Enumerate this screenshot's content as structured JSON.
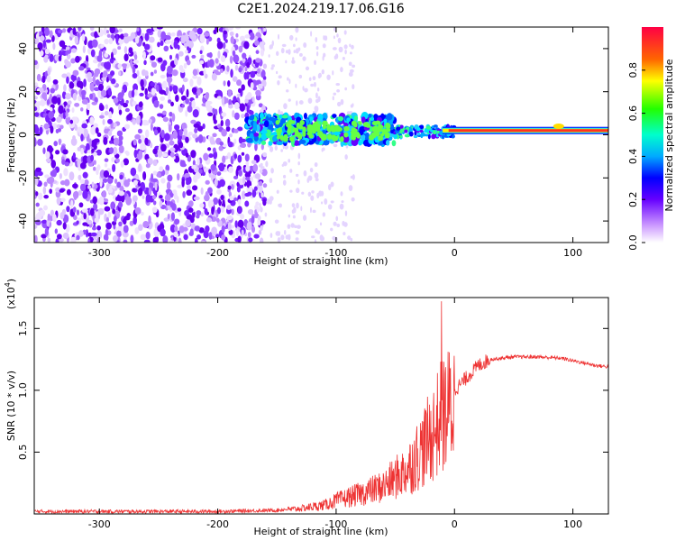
{
  "title": "C2E1.2024.219.17.06.G16",
  "chart_data": [
    {
      "type": "heatmap",
      "xlabel": "Height of straight line (km)",
      "ylabel": "Frequency (Hz)",
      "xlim": [
        -355,
        130
      ],
      "ylim": [
        -50,
        50
      ],
      "xticks": [
        -300,
        -200,
        -100,
        0,
        100
      ],
      "yticks": [
        -40,
        -20,
        0,
        20,
        40
      ],
      "colorbar": {
        "label": "Normalized spectral amplitude",
        "range": [
          0,
          1
        ],
        "ticks": [
          "0.0",
          "0.2",
          "0.4",
          "0.6",
          "0.8"
        ],
        "tick_values": [
          0.0,
          0.2,
          0.4,
          0.6,
          0.8
        ]
      },
      "regions": [
        {
          "x": [
            -355,
            -160
          ],
          "description_level": 0.15,
          "freq_spread": [
            -50,
            50
          ]
        },
        {
          "x": [
            -175,
            -50
          ],
          "description_level": 0.35,
          "freq_spread": [
            -5,
            10
          ]
        },
        {
          "x": [
            -50,
            0
          ],
          "description_level": 0.25,
          "freq_spread": [
            -2,
            5
          ]
        },
        {
          "x": [
            0,
            130
          ],
          "description_level": 0.9,
          "center_freq": 2
        }
      ]
    },
    {
      "type": "line",
      "xlabel": "Height of straight line (km)",
      "ylabel": "SNR (10 * v/v)",
      "yscale_label": "(x10",
      "yscale_exp": "4",
      "yscale_close": ")",
      "xlim": [
        -355,
        130
      ],
      "ylim": [
        0,
        1.75
      ],
      "xticks": [
        -300,
        -200,
        -100,
        0,
        100
      ],
      "yticks": [
        "0.5",
        "1.0",
        "1.5"
      ],
      "ytick_values": [
        0.5,
        1.0,
        1.5
      ],
      "color": "#ee3333",
      "series": [
        {
          "x": [
            -355,
            -300,
            -200,
            -150,
            -130,
            -110,
            -100,
            -80,
            -60,
            -40,
            -30,
            -20,
            -15,
            -10,
            0,
            10,
            20,
            30,
            50,
            70,
            90,
            100,
            110,
            120,
            130
          ],
          "y": [
            0.02,
            0.02,
            0.02,
            0.03,
            0.05,
            0.08,
            0.12,
            0.18,
            0.25,
            0.4,
            0.55,
            0.7,
            0.8,
            0.9,
            1.0,
            1.1,
            1.2,
            1.25,
            1.27,
            1.27,
            1.26,
            1.24,
            1.22,
            1.2,
            1.19
          ]
        }
      ],
      "spike": {
        "x": -11,
        "y": 1.72
      }
    }
  ]
}
